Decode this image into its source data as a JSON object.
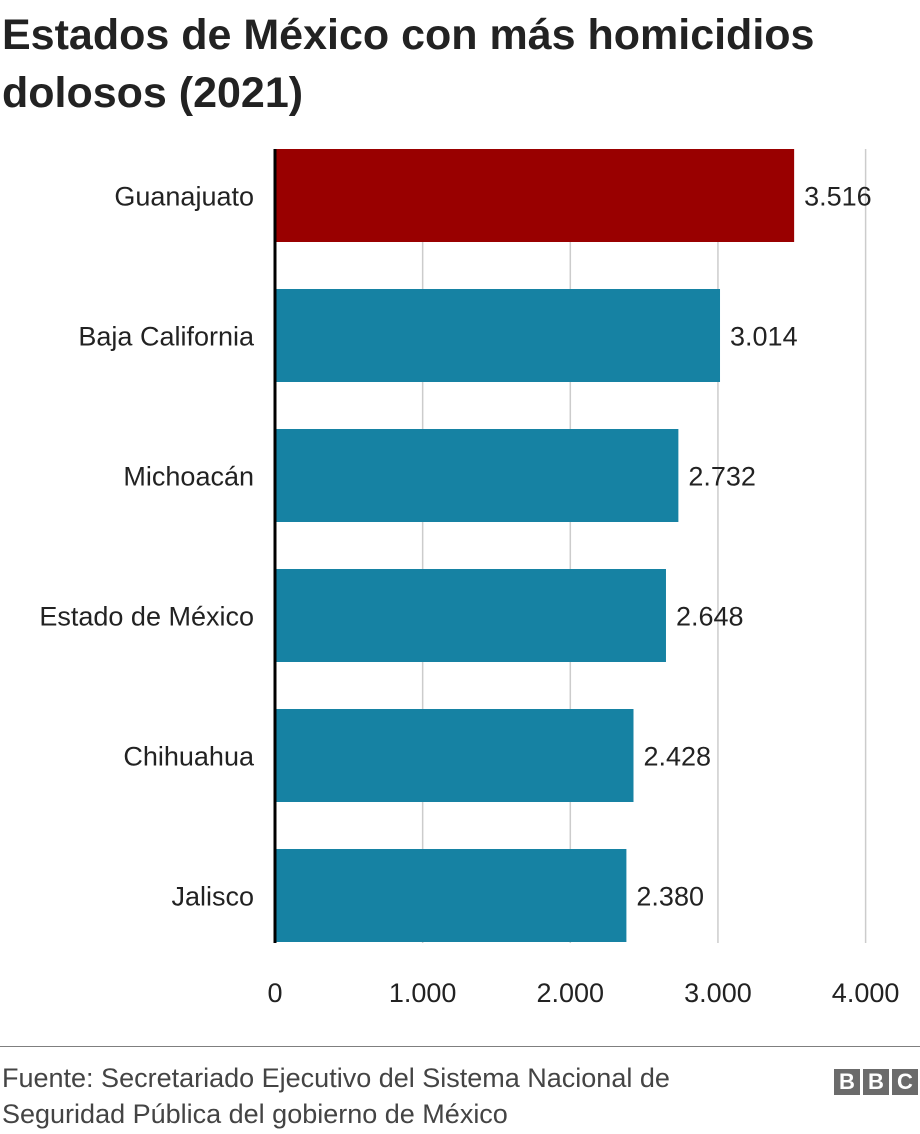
{
  "title": "Estados de México con más homicidios dolosos (2021)",
  "source": "Fuente: Secretariado Ejecutivo del Sistema Nacional de Seguridad Pública del gobierno de México",
  "logo": [
    "B",
    "B",
    "C"
  ],
  "colors": {
    "highlight": "#990000",
    "bar": "#1682a3",
    "grid": "#cccccc",
    "axis": "#000000"
  },
  "chart_data": {
    "type": "bar",
    "orientation": "horizontal",
    "categories": [
      "Guanajuato",
      "Baja California",
      "Michoacán",
      "Estado de México",
      "Chihuahua",
      "Jalisco"
    ],
    "values": [
      3516,
      3014,
      2732,
      2648,
      2428,
      2380
    ],
    "value_labels": [
      "3.516",
      "3.014",
      "2.732",
      "2.648",
      "2.428",
      "2.380"
    ],
    "highlight_index": 0,
    "xlim": [
      0,
      4000
    ],
    "xticks": [
      0,
      1000,
      2000,
      3000,
      4000
    ],
    "xtick_labels": [
      "0",
      "1.000",
      "2.000",
      "3.000",
      "4.000"
    ],
    "grid": true,
    "xlabel": "",
    "ylabel": ""
  }
}
